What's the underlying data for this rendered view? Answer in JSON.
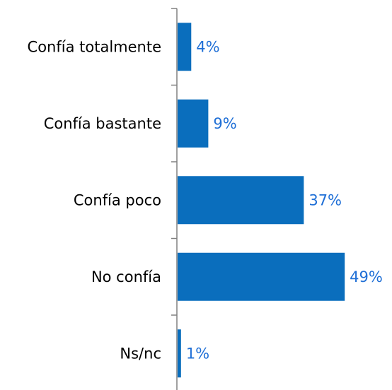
{
  "chart_data": {
    "type": "bar",
    "orientation": "horizontal",
    "categories": [
      "Confía totalmente",
      "Confía bastante",
      "Confía poco",
      "No confía",
      "Ns/nc"
    ],
    "values": [
      4,
      9,
      37,
      49,
      1
    ],
    "value_labels": [
      "4%",
      "9%",
      "37%",
      "49%",
      "1%"
    ],
    "xlim": [
      0,
      50
    ],
    "grid": false,
    "legend": "none",
    "bar_color": "#0a6ebd",
    "label_color": "#1f6fd6"
  }
}
